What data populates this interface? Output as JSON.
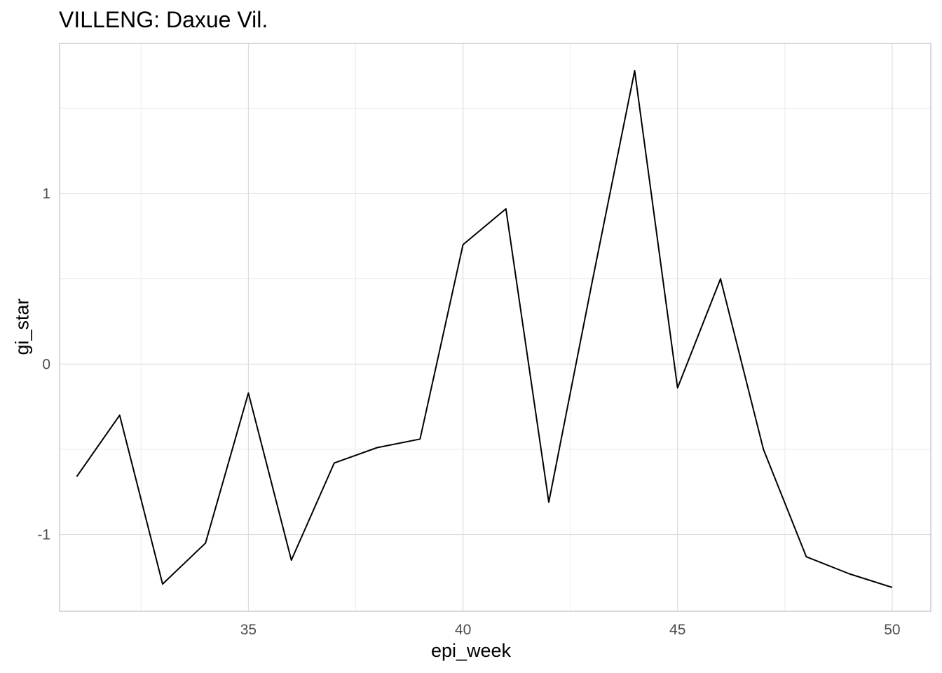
{
  "chart_data": {
    "type": "line",
    "title": "VILLENG: Daxue Vil.",
    "xlabel": "epi_week",
    "ylabel": "gi_star",
    "xlim": [
      30.6,
      50.9
    ],
    "ylim": [
      -1.45,
      1.88
    ],
    "x_ticks": [
      35,
      40,
      45,
      50
    ],
    "x_tick_labels": [
      "35",
      "40",
      "45",
      "50"
    ],
    "y_ticks": [
      -1,
      0,
      1
    ],
    "y_tick_labels": [
      "-1",
      "0",
      "1"
    ],
    "x_minor_gridlines": [
      32.5,
      37.5,
      42.5,
      47.5
    ],
    "y_minor_gridlines": [
      -0.5,
      0.5,
      1.5
    ],
    "grid": true,
    "series": [
      {
        "color": "#000000",
        "x": [
          31,
          32,
          33,
          34,
          35,
          36,
          37,
          38,
          39,
          40,
          41,
          42,
          43,
          44,
          45,
          46,
          47,
          48,
          49,
          50
        ],
        "y": [
          -0.66,
          -0.3,
          -1.29,
          -1.05,
          -0.17,
          -1.15,
          -0.58,
          -0.49,
          -0.44,
          0.7,
          0.91,
          -0.81,
          0.47,
          1.72,
          -0.14,
          0.5,
          -0.5,
          -1.13,
          -1.23,
          -1.31
        ]
      }
    ]
  },
  "colors": {
    "grid_major": "#dcdcdc",
    "grid_minor": "#ececec",
    "panel_border": "#bdbdbd",
    "tick_text": "#4d4d4d"
  }
}
